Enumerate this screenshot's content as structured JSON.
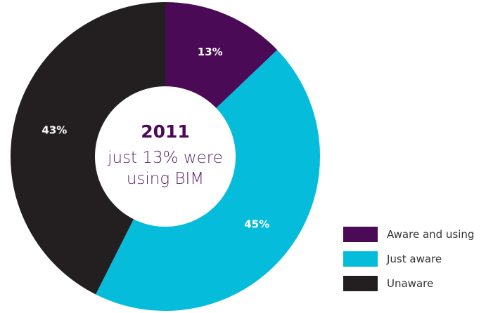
{
  "chart_data": {
    "type": "pie",
    "title": "2011",
    "subtitle_lines": [
      "just 13% were",
      "using BIM"
    ],
    "categories": [
      "Aware and using",
      "Just aware",
      "Unaware"
    ],
    "values": [
      13,
      45,
      43
    ],
    "value_labels": [
      "13%",
      "45%",
      "43%"
    ],
    "colors": [
      "#4a0a55",
      "#06bcdb",
      "#231f20"
    ],
    "donut": true,
    "legend_position": "bottom-right"
  },
  "colors": {
    "title": "#4a0a55",
    "subtitle": "#5c1f6b",
    "slice_label": "#ffffff"
  }
}
